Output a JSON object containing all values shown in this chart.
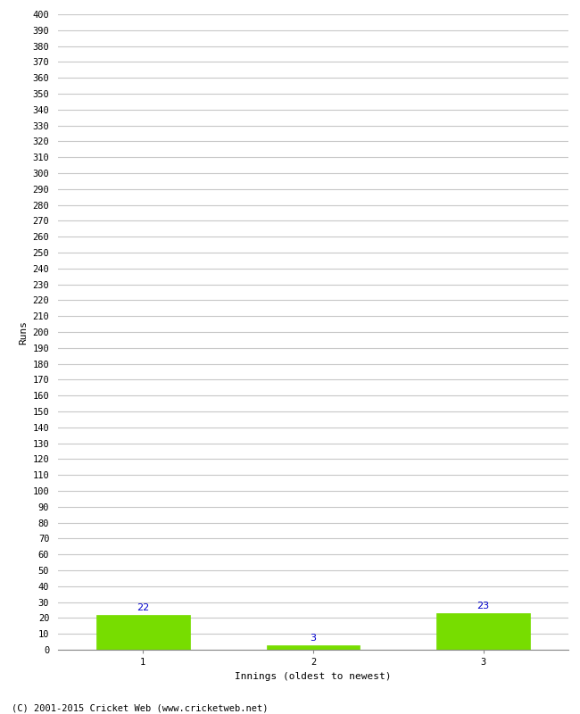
{
  "categories": [
    "1",
    "2",
    "3"
  ],
  "values": [
    22,
    3,
    23
  ],
  "bar_color": "#77dd00",
  "bar_edge_color": "#77dd00",
  "label_color": "#0000cc",
  "xlabel": "Innings (oldest to newest)",
  "ylabel": "Runs",
  "ylim": [
    0,
    400
  ],
  "ytick_step": 10,
  "title": "",
  "footer": "(C) 2001-2015 Cricket Web (www.cricketweb.net)",
  "grid_color": "#c8c8c8",
  "background_color": "#ffffff",
  "bar_width": 0.55,
  "label_fontsize": 8,
  "tick_fontsize": 7.5,
  "axis_label_fontsize": 8,
  "footer_fontsize": 7.5
}
